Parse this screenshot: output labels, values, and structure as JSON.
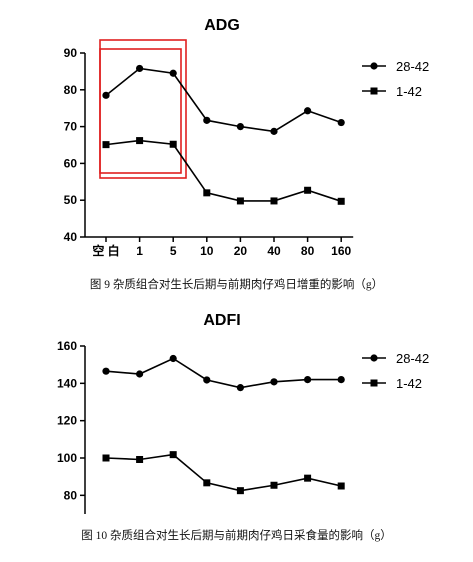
{
  "chart_data": [
    {
      "type": "line",
      "title": "ADG",
      "categories": [
        "空 白",
        "1",
        "5",
        "10",
        "20",
        "40",
        "80",
        "160"
      ],
      "series": [
        {
          "name": "28-42",
          "marker": "circle",
          "values": [
            78.5,
            85.8,
            84.5,
            71.7,
            70.0,
            68.7,
            74.3,
            71.1
          ]
        },
        {
          "name": "1-42",
          "marker": "square",
          "values": [
            65.1,
            66.2,
            65.2,
            52.0,
            49.8,
            49.8,
            52.7,
            49.7
          ]
        }
      ],
      "xlabel": "",
      "ylabel": "",
      "ylim": [
        40,
        90
      ],
      "yticks": [
        "40",
        "50",
        "60",
        "70",
        "80",
        "90"
      ],
      "grid": false,
      "legend": "top-right",
      "highlight": {
        "color": "#e02020",
        "categories": [
          "空 白",
          "1",
          "5"
        ]
      }
    },
    {
      "type": "line",
      "title": "ADFI",
      "categories": [
        "空 白",
        "1",
        "5",
        "10",
        "20",
        "40",
        "80",
        "160"
      ],
      "series": [
        {
          "name": "28-42",
          "marker": "circle",
          "values": [
            146.5,
            145.0,
            153.3,
            141.8,
            137.7,
            140.8,
            142.0,
            142.0
          ]
        },
        {
          "name": "1-42",
          "marker": "square",
          "values": [
            100.0,
            99.2,
            101.8,
            86.7,
            82.5,
            85.4,
            89.2,
            85.0
          ]
        }
      ],
      "xlabel": "",
      "ylabel": "",
      "ylim": [
        70,
        160
      ],
      "yticks": [
        "80",
        "100",
        "120",
        "140",
        "160"
      ],
      "grid": false,
      "legend": "top-right"
    }
  ],
  "captions": {
    "fig9": "图 9 杂质组合对生长后期与前期肉仔鸡日增重的影响（g）",
    "fig10": "图 10 杂质组合对生长后期与前期肉仔鸡日采食量的影响（g）"
  }
}
